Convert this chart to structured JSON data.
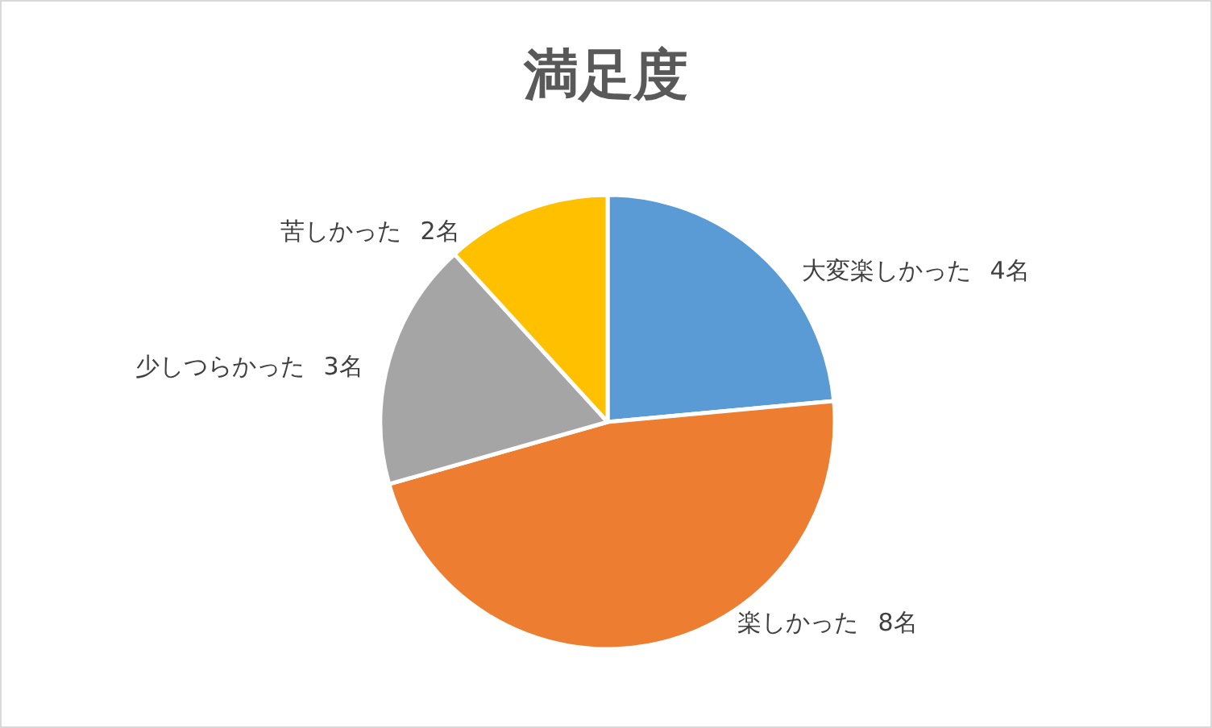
{
  "chart_data": {
    "type": "pie",
    "title": "満足度",
    "categories": [
      "大変楽しかった",
      "楽しかった",
      "少しつらかった",
      "苦しかった"
    ],
    "values": [
      4,
      8,
      3,
      2
    ],
    "value_labels": [
      "4名",
      "8名",
      "3名",
      "2名"
    ],
    "colors": [
      "#5b9bd5",
      "#ed7d31",
      "#a5a5a5",
      "#ffc000"
    ]
  }
}
